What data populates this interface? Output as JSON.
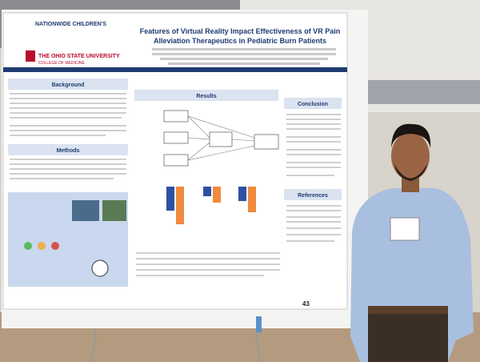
{
  "poster": {
    "title_line1": "Features of Virtual Reality Impact Effectiveness of VR Pain",
    "title_line2": "Alleviation Therapeutics in Pediatric Burn Patients",
    "logo_nationwide": "NATIONWIDE CHILDREN'S",
    "logo_osu": "THE OHIO STATE UNIVERSITY",
    "logo_osu_sub": "COLLEGE OF MEDICINE",
    "sections": [
      "Background",
      "Methods",
      "Results",
      "Conclusion",
      "References"
    ],
    "board_number": "43"
  }
}
